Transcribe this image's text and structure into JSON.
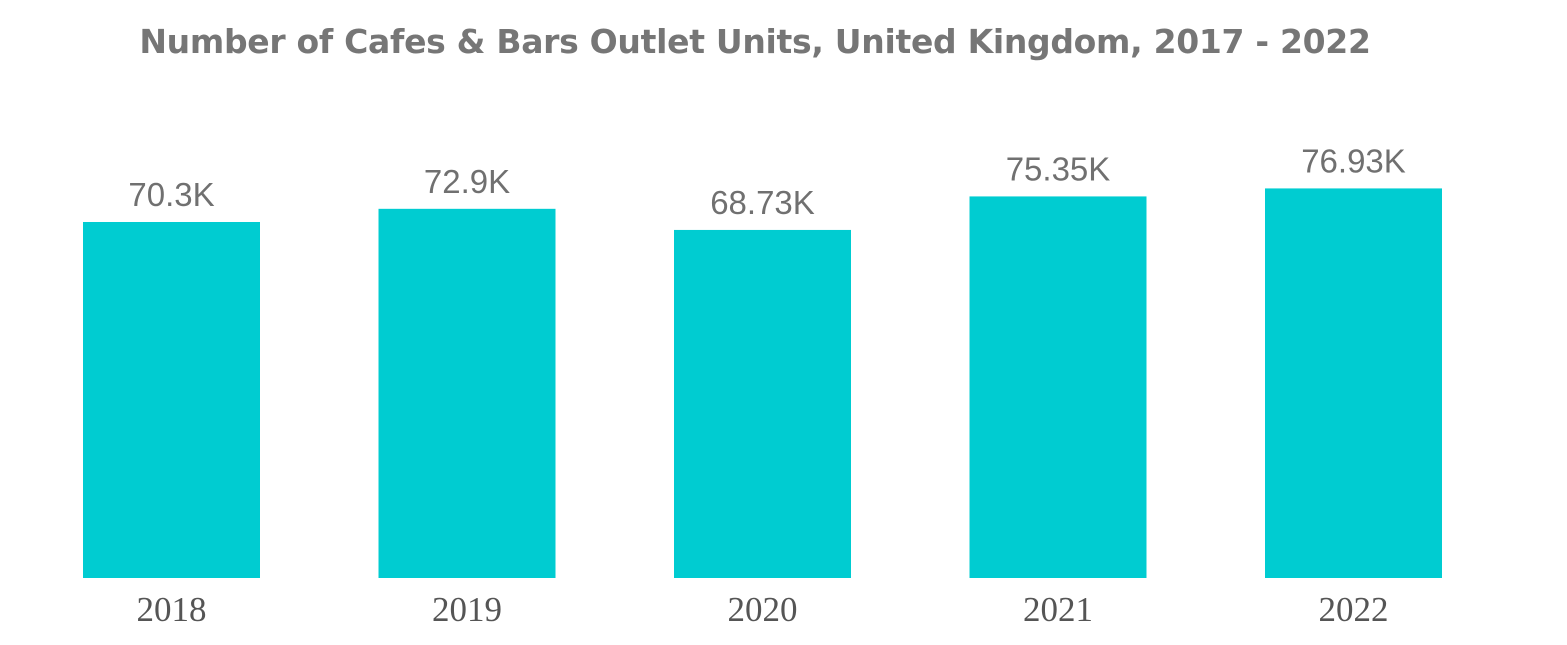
{
  "chart_data": {
    "type": "bar",
    "title": "Number of Cafes & Bars Outlet Units, United Kingdom, 2017 - 2022",
    "categories": [
      "2018",
      "2019",
      "2020",
      "2021",
      "2022"
    ],
    "values": [
      70.3,
      72.9,
      68.73,
      75.35,
      76.93
    ],
    "data_labels": [
      "70.3K",
      "72.9K",
      "68.73K",
      "75.35K",
      "76.93K"
    ],
    "unit": "K",
    "ylim": [
      0,
      90
    ],
    "grid": false,
    "legend": "none",
    "bar_color": "#00CCD1"
  }
}
